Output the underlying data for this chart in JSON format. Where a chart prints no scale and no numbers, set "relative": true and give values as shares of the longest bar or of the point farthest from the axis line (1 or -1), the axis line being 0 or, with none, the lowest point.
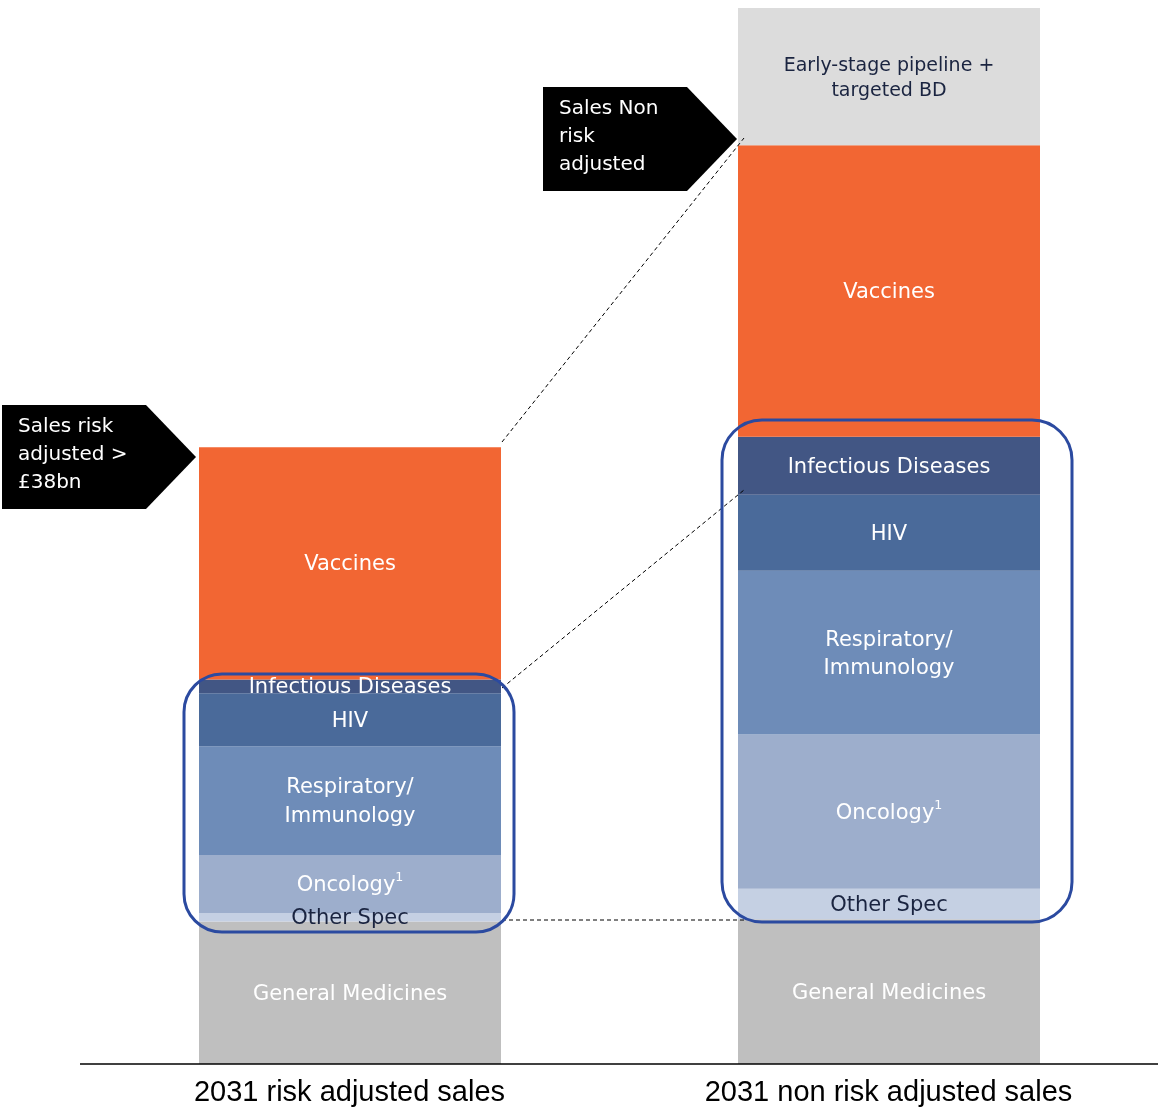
{
  "chart_data": {
    "type": "bar",
    "stacked": true,
    "relative": true,
    "categories": [
      "2031 risk adjusted sales",
      "2031 non risk adjusted sales"
    ],
    "series": [
      {
        "name": "General Medicines",
        "color": "#bfbfbf",
        "values": [
          0.135,
          0.137
        ]
      },
      {
        "name": "Other Spec",
        "color": "#c5d0e3",
        "values": [
          0.008,
          0.029
        ]
      },
      {
        "name": "Oncology$^{1}$",
        "color": "#9daecc",
        "values": [
          0.055,
          0.146
        ]
      },
      {
        "name": "Respiratory/ Immunology",
        "color": "#6e8cb8",
        "values": [
          0.103,
          0.155
        ]
      },
      {
        "name": "HIV",
        "color": "#4a6a9a",
        "values": [
          0.05,
          0.072
        ]
      },
      {
        "name": "Infectious Diseases",
        "color": "#425684",
        "values": [
          0.013,
          0.055
        ]
      },
      {
        "name": "Vaccines",
        "color": "#f26633",
        "values": [
          0.22,
          0.276
        ]
      },
      {
        "name": "Early-stage pipeline + targeted BD",
        "color": "#dcdcdc",
        "values": [
          null,
          0.13
        ]
      }
    ],
    "annotations": [
      "Sales risk adjusted > £38bn",
      "Sales Non risk adjusted"
    ]
  }
}
